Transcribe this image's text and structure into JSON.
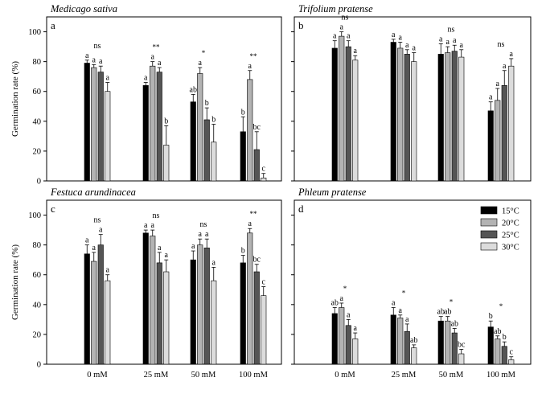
{
  "figure": {
    "ylabel": "Germination rate (%)",
    "yticks": [
      "0",
      "20",
      "40",
      "60",
      "80",
      "100"
    ],
    "legend": {
      "placement": "top-right of panel d",
      "entries": [
        {
          "label": "15°C",
          "color": "#000000"
        },
        {
          "label": "20°C",
          "color": "#b3b3b3"
        },
        {
          "label": "25°C",
          "color": "#555555"
        },
        {
          "label": "30°C",
          "color": "#dcdcdc"
        }
      ]
    }
  },
  "chart_data": [
    {
      "panel": "a",
      "title": "Medicago sativa",
      "type": "bar",
      "categories": [
        "0 mM",
        "25 mM",
        "50 mM",
        "100 mM"
      ],
      "ylim": [
        0,
        110
      ],
      "ylabel": "Germination rate (%)",
      "show_xticks": false,
      "series": [
        {
          "name": "15°C",
          "values": [
            79,
            64,
            53,
            33
          ],
          "errors": [
            2,
            2,
            5,
            10
          ]
        },
        {
          "name": "20°C",
          "values": [
            76,
            77,
            72,
            68
          ],
          "errors": [
            2,
            3,
            4,
            6
          ]
        },
        {
          "name": "25°C",
          "values": [
            73,
            73,
            41,
            21
          ],
          "errors": [
            4,
            3,
            8,
            12
          ]
        },
        {
          "name": "30°C",
          "values": [
            60,
            24,
            26,
            2
          ],
          "errors": [
            6,
            13,
            12,
            3
          ]
        }
      ],
      "letters": [
        [
          "a",
          "a",
          "a",
          "a"
        ],
        [
          "a",
          "a",
          "a",
          "b"
        ],
        [
          "ab",
          "a",
          "b",
          "b"
        ],
        [
          "b",
          "a",
          "bc",
          "c"
        ]
      ],
      "significance": [
        "ns",
        "**",
        "*",
        "**"
      ]
    },
    {
      "panel": "b",
      "title": "Trifolium pratense",
      "type": "bar",
      "categories": [
        "0 mM",
        "25 mM",
        "50 mM",
        "100 mM"
      ],
      "ylim": [
        0,
        110
      ],
      "show_xticks": false,
      "series": [
        {
          "name": "15°C",
          "values": [
            89,
            93,
            85,
            47
          ],
          "errors": [
            5,
            2,
            7,
            6
          ]
        },
        {
          "name": "20°C",
          "values": [
            97,
            89,
            86,
            54
          ],
          "errors": [
            3,
            4,
            4,
            8
          ]
        },
        {
          "name": "25°C",
          "values": [
            90,
            85,
            87,
            64
          ],
          "errors": [
            4,
            3,
            4,
            10
          ]
        },
        {
          "name": "30°C",
          "values": [
            81,
            80,
            83,
            77
          ],
          "errors": [
            3,
            6,
            5,
            5
          ]
        }
      ],
      "letters": [
        [
          "a",
          "a",
          "a",
          "a"
        ],
        [
          "a",
          "a",
          "a",
          "a"
        ],
        [
          "a",
          "a",
          "a",
          "a"
        ],
        [
          "a",
          "a",
          "a",
          "a"
        ]
      ],
      "significance": [
        "ns",
        "",
        "ns",
        "ns"
      ]
    },
    {
      "panel": "c",
      "title": "Festuca arundinacea",
      "type": "bar",
      "categories": [
        "0 mM",
        "25 mM",
        "50 mM",
        "100 mM"
      ],
      "ylim": [
        0,
        110
      ],
      "ylabel": "Germination rate (%)",
      "show_xticks": true,
      "series": [
        {
          "name": "15°C",
          "values": [
            74,
            88,
            70,
            68
          ],
          "errors": [
            6,
            2,
            6,
            5
          ]
        },
        {
          "name": "20°C",
          "values": [
            69,
            86,
            80,
            88
          ],
          "errors": [
            6,
            4,
            4,
            3
          ]
        },
        {
          "name": "25°C",
          "values": [
            80,
            68,
            78,
            62
          ],
          "errors": [
            7,
            7,
            6,
            5
          ]
        },
        {
          "name": "30°C",
          "values": [
            56,
            62,
            56,
            46
          ],
          "errors": [
            4,
            8,
            9,
            6
          ]
        }
      ],
      "letters": [
        [
          "a",
          "a",
          "a",
          "a"
        ],
        [
          "a",
          "a",
          "a",
          "a"
        ],
        [
          "a",
          "a",
          "a",
          "a"
        ],
        [
          "b",
          "a",
          "bc",
          "c"
        ]
      ],
      "significance": [
        "ns",
        "ns",
        "ns",
        "**"
      ]
    },
    {
      "panel": "d",
      "title": "Phleum pratense",
      "type": "bar",
      "categories": [
        "0 mM",
        "25 mM",
        "50 mM",
        "100 mM"
      ],
      "ylim": [
        0,
        110
      ],
      "show_xticks": true,
      "series": [
        {
          "name": "15°C",
          "values": [
            34,
            33,
            29,
            25
          ],
          "errors": [
            4,
            5,
            3,
            4
          ]
        },
        {
          "name": "20°C",
          "values": [
            38,
            31,
            29,
            17
          ],
          "errors": [
            3,
            2,
            3,
            2
          ]
        },
        {
          "name": "25°C",
          "values": [
            26,
            22,
            21,
            12
          ],
          "errors": [
            4,
            5,
            3,
            3
          ]
        },
        {
          "name": "30°C",
          "values": [
            17,
            11,
            7,
            3
          ],
          "errors": [
            4,
            2,
            3,
            2
          ]
        }
      ],
      "letters": [
        [
          "ab",
          "a",
          "a",
          "a"
        ],
        [
          "a",
          "a",
          "a",
          "ab"
        ],
        [
          "ab",
          "ab",
          "ab",
          "bc"
        ],
        [
          "b",
          "ab",
          "b",
          "c"
        ]
      ],
      "significance": [
        "*",
        "*",
        "*",
        "*"
      ]
    }
  ]
}
